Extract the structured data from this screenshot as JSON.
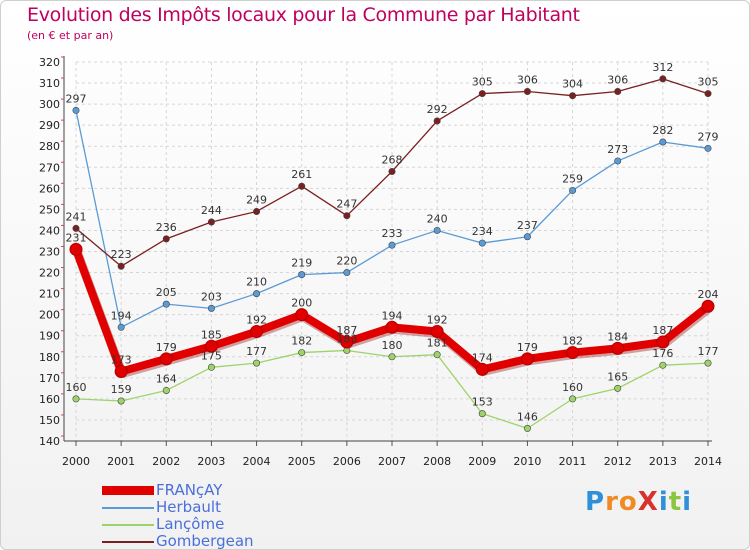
{
  "title": "Evolution des Impôts locaux pour la Commune par Habitant",
  "subtitle": "(en € et par an)",
  "logo": {
    "text": "ProXiti",
    "letter_colors": [
      "#2f8fd8",
      "#f08a24",
      "#f08a24",
      "#d8322e",
      "#2f8fd8",
      "#8cc63e",
      "#2f8fd8"
    ]
  },
  "chart_data": {
    "type": "line",
    "categories": [
      "2000",
      "2001",
      "2002",
      "2003",
      "2004",
      "2005",
      "2006",
      "2007",
      "2008",
      "2009",
      "2010",
      "2011",
      "2012",
      "2013",
      "2014"
    ],
    "ylim": [
      140,
      320
    ],
    "yticks": [
      140,
      150,
      160,
      170,
      180,
      190,
      200,
      210,
      220,
      230,
      240,
      250,
      260,
      270,
      280,
      290,
      300,
      310,
      320
    ],
    "grid": true,
    "legend_position": "bottom-left",
    "series": [
      {
        "name": "FRANçAY",
        "color": "#e00000",
        "values": [
          231,
          173,
          179,
          185,
          192,
          200,
          187,
          194,
          192,
          174,
          179,
          182,
          184,
          187,
          204
        ]
      },
      {
        "name": "Herbault",
        "color": "#5b9bd5",
        "values": [
          297,
          194,
          205,
          203,
          210,
          219,
          220,
          233,
          240,
          234,
          237,
          259,
          273,
          282,
          279
        ]
      },
      {
        "name": "Lançôme",
        "color": "#9ed36a",
        "values": [
          160,
          159,
          164,
          175,
          177,
          182,
          183,
          180,
          181,
          153,
          146,
          160,
          165,
          176,
          177
        ]
      },
      {
        "name": "Gombergean",
        "color": "#7a2020",
        "values": [
          241,
          223,
          236,
          244,
          249,
          261,
          247,
          268,
          292,
          305,
          306,
          304,
          306,
          312,
          305
        ]
      }
    ]
  }
}
